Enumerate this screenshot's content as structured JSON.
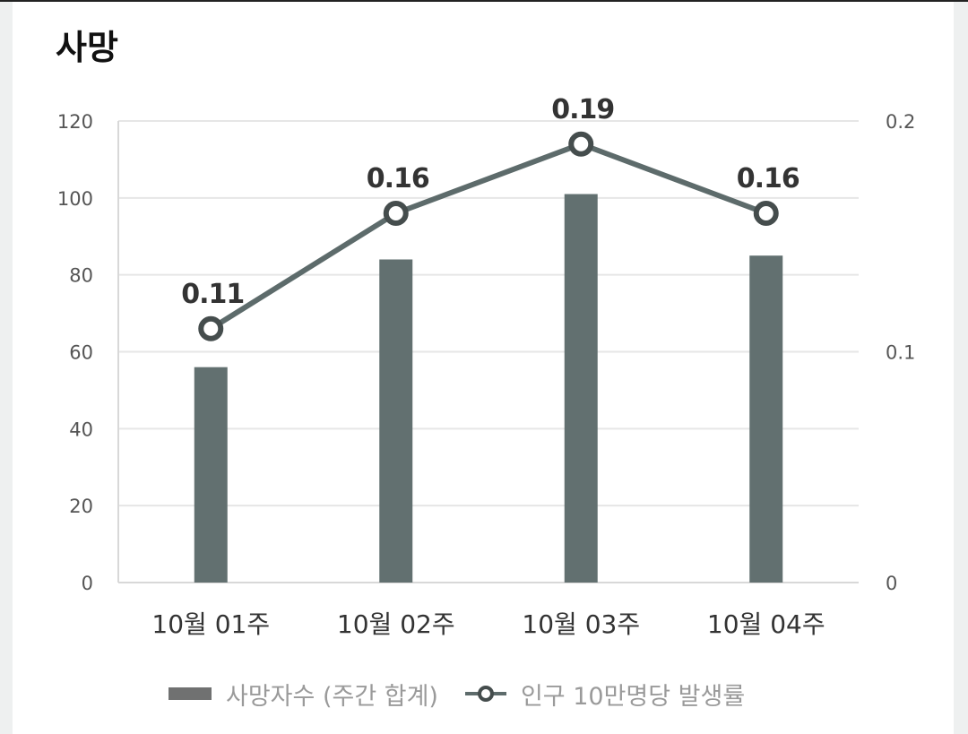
{
  "title": "사망",
  "colors": {
    "bar": "#627070",
    "line": "#5d6b6b",
    "marker_stroke": "#454d4d",
    "grid": "#e6e6e6",
    "legend_bar": "#707171"
  },
  "chart_data": {
    "type": "bar",
    "categories": [
      "10월 01주",
      "10월 02주",
      "10월 03주",
      "10월 04주"
    ],
    "series": [
      {
        "name": "사망자수 (주간 합계)",
        "type": "bar",
        "axis": "left",
        "values": [
          56,
          84,
          101,
          85
        ]
      },
      {
        "name": "인구 10만명당 발생률",
        "type": "line",
        "axis": "right",
        "values": [
          0.11,
          0.16,
          0.19,
          0.16
        ],
        "labels": [
          "0.11",
          "0.16",
          "0.19",
          "0.16"
        ]
      }
    ],
    "y_left": {
      "ylim": [
        0,
        120
      ],
      "ticks": [
        0,
        20,
        40,
        60,
        80,
        100,
        120
      ]
    },
    "y_right": {
      "ylim": [
        0,
        0.2
      ],
      "ticks": [
        0,
        0.1,
        0.2
      ],
      "tick_labels": [
        "0",
        "0.1",
        "0.2"
      ]
    },
    "grid": true,
    "legend_position": "bottom"
  },
  "legend": {
    "bar_label": "사망자수 (주간 합계)",
    "line_label": "인구 10만명당 발생률"
  }
}
